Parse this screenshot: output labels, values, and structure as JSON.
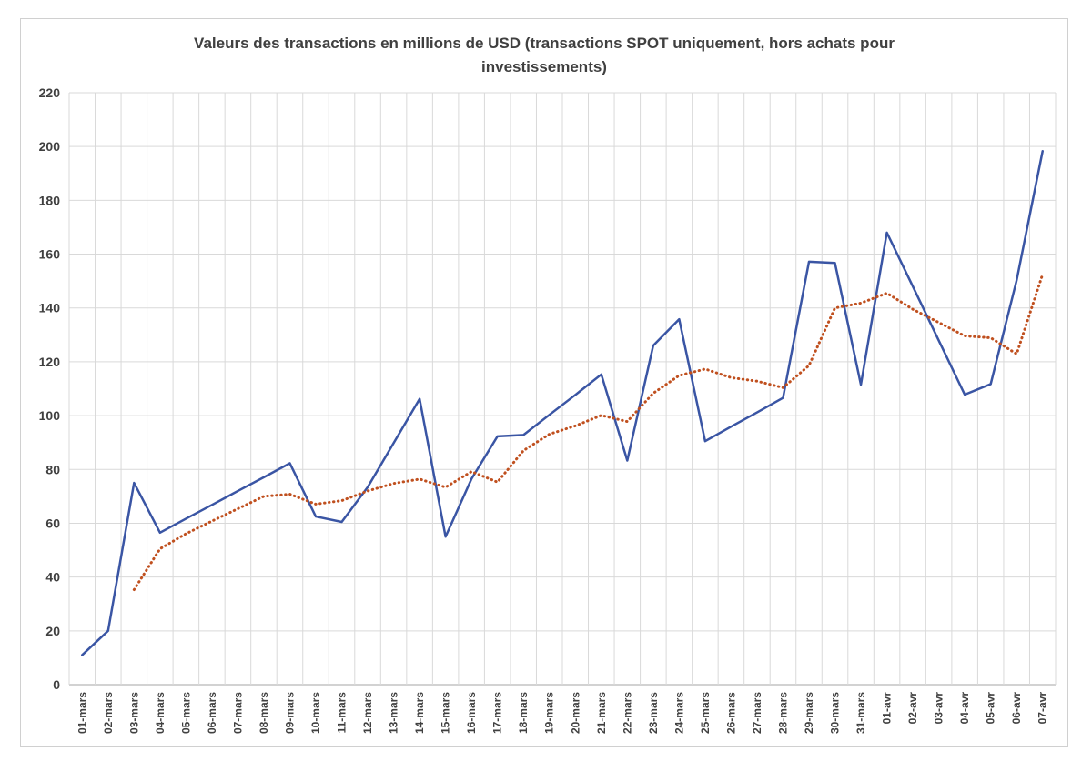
{
  "chart_data": {
    "type": "line",
    "title_line1": "Valeurs des transactions en millions de USD (transactions SPOT uniquement, hors achats pour",
    "title_line2": "investissements)",
    "xlabel": "",
    "ylabel": "",
    "ylim": [
      0,
      220
    ],
    "yticks": [
      0,
      20,
      40,
      60,
      80,
      100,
      120,
      140,
      160,
      180,
      200,
      220
    ],
    "grid": true,
    "legend": "none",
    "categories": [
      "01-mars",
      "02-mars",
      "03-mars",
      "04-mars",
      "05-mars",
      "06-mars",
      "07-mars",
      "08-mars",
      "09-mars",
      "10-mars",
      "11-mars",
      "12-mars",
      "13-mars",
      "14-mars",
      "15-mars",
      "16-mars",
      "17-mars",
      "18-mars",
      "19-mars",
      "20-mars",
      "21-mars",
      "22-mars",
      "23-mars",
      "24-mars",
      "25-mars",
      "26-mars",
      "27-mars",
      "28-mars",
      "29-mars",
      "30-mars",
      "31-mars",
      "01-avr",
      "02-avr",
      "03-avr",
      "04-avr",
      "05-avr",
      "06-avr",
      "07-avr"
    ],
    "series": [
      {
        "style": "solid",
        "color": "#3a55a4",
        "values": [
          11,
          20,
          75,
          56.5,
          61.7,
          66.8,
          72,
          77.1,
          82.3,
          62.5,
          60.5,
          73.4,
          89.8,
          106.2,
          55,
          76.5,
          92.3,
          92.8,
          100.3,
          107.7,
          115.3,
          83.3,
          126,
          135.8,
          90.5,
          95.9,
          101.2,
          106.6,
          157.2,
          156.7,
          111.5,
          168,
          148,
          127.9,
          107.8,
          111.7,
          150.3,
          198.3
        ]
      },
      {
        "style": "dotted",
        "color": "#c0501f",
        "values": [
          null,
          null,
          35.3,
          50.5,
          56.1,
          60.8,
          65.4,
          70,
          70.8,
          67.1,
          68.4,
          72,
          74.8,
          76.4,
          73.4,
          79.2,
          75.3,
          87,
          93.1,
          96.2,
          100.1,
          97.8,
          108.3,
          114.9,
          117.3,
          114.1,
          112.8,
          110.4,
          118.6,
          140,
          141.8,
          145.5,
          139.5,
          134.6,
          129.6,
          128.9,
          122.9,
          152.5
        ]
      }
    ]
  }
}
